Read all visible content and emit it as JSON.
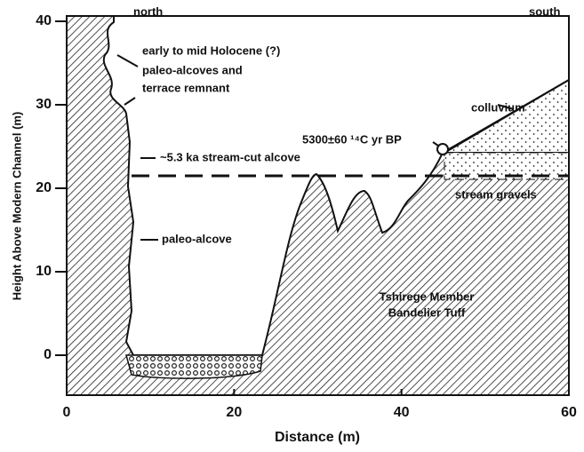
{
  "axes": {
    "xticks": [
      0,
      20,
      40,
      60
    ],
    "yticks": [
      0,
      10,
      20,
      30,
      40
    ],
    "x_label": "Distance (m)",
    "y_label": "Height Above Modern Channel (m)"
  },
  "annotations": {
    "north": "north",
    "south": "south",
    "holocene": "early to mid Holocene (?)",
    "paleo_alcoves": "paleo-alcoves and",
    "terrace": "terrace remnant",
    "colluvium": "colluvium",
    "date": "5300±60 ¹⁴C yr BP",
    "stream_cut": "~5.3 ka stream-cut alcove",
    "gravels": "stream gravels",
    "paleo_alcove": "paleo-alcove",
    "tuff_1": "Tshirege Member",
    "tuff_2": "Bandelier Tuff"
  }
}
